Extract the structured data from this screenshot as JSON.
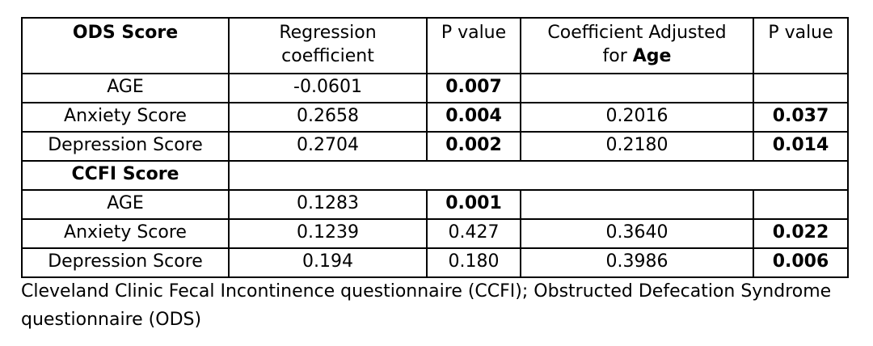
{
  "table": {
    "headers": {
      "col1": "ODS Score",
      "col2_line1": "Regression",
      "col2_line2": "coefficient",
      "col3": "P value",
      "col4_line1": "Coefficient Adjusted",
      "col4_line2_prefix": "for",
      "col4_line2_bold": "Age",
      "col5": "P value"
    },
    "ods_rows": [
      {
        "label": "AGE",
        "coef": "-0.0601",
        "p": "0.007",
        "adj": "",
        "adj_p": ""
      },
      {
        "label": "Anxiety Score",
        "coef": "0.2658",
        "p": "0.004",
        "adj": "0.2016",
        "adj_p": "0.037"
      },
      {
        "label": "Depression Score",
        "coef": "0.2704",
        "p": "0.002",
        "adj": "0.2180",
        "adj_p": "0.014"
      }
    ],
    "ccfi_section_label": "CCFI Score",
    "ccfi_rows": [
      {
        "label": "AGE",
        "coef": "0.1283",
        "p": "0.001",
        "adj": "",
        "adj_p": ""
      },
      {
        "label": "Anxiety Score",
        "coef": "0.1239",
        "p": "0.427",
        "adj": "0.3640",
        "adj_p": "0.022"
      },
      {
        "label": "Depression Score",
        "coef": "0.194",
        "p": "0.180",
        "adj": "0.3986",
        "adj_p": "0.006"
      }
    ]
  },
  "caption": "Cleveland Clinic Fecal Incontinence questionnaire (CCFI); Obstructed Defecation Syndrome questionnaire (ODS)"
}
